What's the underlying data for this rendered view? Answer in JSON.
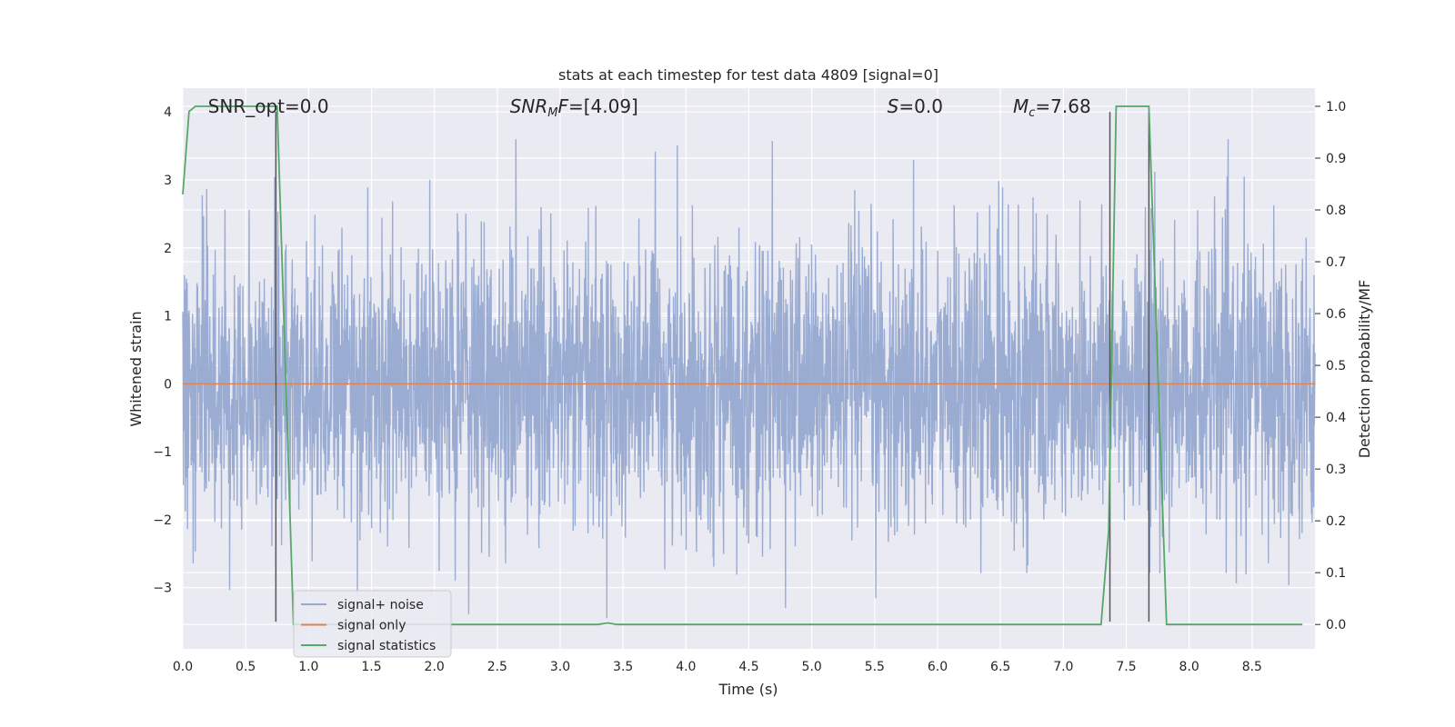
{
  "chart_data": {
    "type": "line",
    "title": "stats at each timestep for test data 4809 [signal=0]",
    "xlabel": "Time (s)",
    "ylabel": "Whitened strain",
    "y2label": "Detection probability/MF",
    "xlim": [
      0.0,
      9.0
    ],
    "ylim": [
      -3.9,
      4.35
    ],
    "y2lim": [
      -0.047,
      1.035
    ],
    "xticks": [
      "0.0",
      "0.5",
      "1.0",
      "1.5",
      "2.0",
      "2.5",
      "3.0",
      "3.5",
      "4.0",
      "4.5",
      "5.0",
      "5.5",
      "6.0",
      "6.5",
      "7.0",
      "7.5",
      "8.0",
      "8.5"
    ],
    "xtick_values": [
      0.0,
      0.5,
      1.0,
      1.5,
      2.0,
      2.5,
      3.0,
      3.5,
      4.0,
      4.5,
      5.0,
      5.5,
      6.0,
      6.5,
      7.0,
      7.5,
      8.0,
      8.5
    ],
    "yticks": [
      "−3",
      "−2",
      "−1",
      "0",
      "1",
      "2",
      "3",
      "4"
    ],
    "ytick_values": [
      -3,
      -2,
      -1,
      0,
      1,
      2,
      3,
      4
    ],
    "y2ticks": [
      "0.0",
      "0.1",
      "0.2",
      "0.3",
      "0.4",
      "0.5",
      "0.6",
      "0.7",
      "0.8",
      "0.9",
      "1.0"
    ],
    "y2tick_values": [
      0.0,
      0.1,
      0.2,
      0.3,
      0.4,
      0.5,
      0.6,
      0.7,
      0.8,
      0.9,
      1.0
    ],
    "annotations": [
      {
        "label": "SNR_opt=0.0",
        "x_value": 0.2
      },
      {
        "label": "SNR_MF=[4.09]",
        "x_value": 2.6
      },
      {
        "label": "S=0.0",
        "x_value": 5.6
      },
      {
        "label": "M_c=7.68",
        "x_value": 6.6
      }
    ],
    "series": [
      {
        "name": "signal+ noise",
        "color": "#97a9d0",
        "description": "whitened strain noise, roughly within ±2.6 with spikes to ±3.6",
        "x_range": [
          0.0,
          9.0
        ],
        "approx_amplitude": 2.6
      },
      {
        "name": "signal only",
        "color": "#dd8452",
        "x": [
          0.0,
          9.0
        ],
        "y": [
          0.0,
          0.0
        ]
      },
      {
        "name": "signal statistics",
        "color": "#55a868",
        "axis": "right",
        "x": [
          0.0,
          0.05,
          0.1,
          0.2,
          0.74,
          0.75,
          0.88,
          0.9,
          3.3,
          3.38,
          3.45,
          7.3,
          7.36,
          7.42,
          7.65,
          7.68,
          7.82,
          7.85,
          8.5,
          8.9
        ],
        "y": [
          0.83,
          0.99,
          1.0,
          1.0,
          1.0,
          1.0,
          0.0,
          0.0,
          0.0,
          0.003,
          0.0,
          0.0,
          0.18,
          1.0,
          1.0,
          1.0,
          0.0,
          0.0,
          0.0,
          0.0
        ]
      }
    ],
    "vlines": [
      {
        "x": 0.74,
        "ymin": -3.5,
        "ymax": 4.0,
        "color": "#555555"
      },
      {
        "x": 7.37,
        "ymin": -3.5,
        "ymax": 4.0,
        "color": "#555555"
      },
      {
        "x": 7.68,
        "ymin": -3.5,
        "ymax": 4.0,
        "color": "#555555"
      }
    ],
    "legend": {
      "placement": "lower-left",
      "entries": [
        {
          "label": "signal+ noise",
          "color": "#97a9d0"
        },
        {
          "label": "signal only",
          "color": "#dd8452"
        },
        {
          "label": "signal statistics",
          "color": "#55a868"
        }
      ]
    },
    "colors": {
      "axes_bg": "#eaeaf2",
      "grid": "#ffffff",
      "text": "#262626"
    }
  }
}
